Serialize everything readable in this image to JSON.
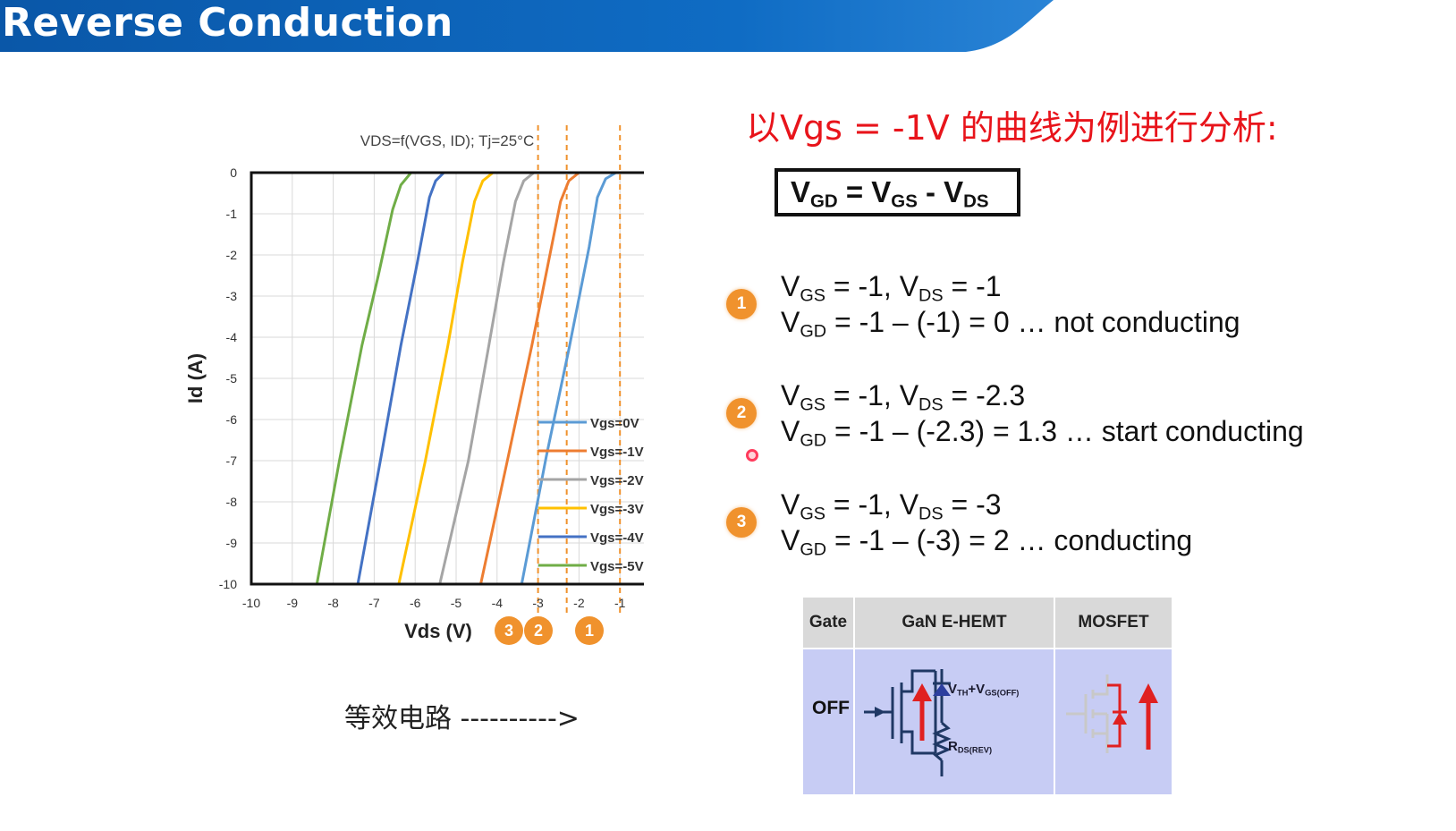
{
  "slide": {
    "title": "Reverse Conduction",
    "banner_color": "#0d5fb3"
  },
  "chart_data": {
    "type": "line",
    "title": "VDS=f(VGS, ID); Tj=25°C",
    "xlabel": "Vds (V)",
    "ylabel": "Id (A)",
    "xlim": [
      -10,
      0
    ],
    "ylim": [
      -10,
      0
    ],
    "x_ticks": [
      "-10",
      "-9",
      "-8",
      "-7",
      "-6",
      "-5",
      "-4",
      "-3",
      "-2",
      "-1",
      "0"
    ],
    "y_ticks": [
      "0",
      "-1",
      "-2",
      "-3",
      "-4",
      "-5",
      "-6",
      "-7",
      "-8",
      "-9",
      "-10"
    ],
    "grid": true,
    "legend_position": "lower-right",
    "series": [
      {
        "name": "Vgs=0V",
        "color": "#5b9bd5",
        "points": [
          [
            0,
            0
          ],
          [
            -1.1,
            0
          ],
          [
            -1.35,
            -0.15
          ],
          [
            -1.55,
            -0.6
          ],
          [
            -1.75,
            -1.8
          ],
          [
            -2.25,
            -4.3
          ],
          [
            -2.8,
            -6.9
          ],
          [
            -3.4,
            -10
          ]
        ]
      },
      {
        "name": "Vgs=-1V",
        "color": "#ed7d31",
        "points": [
          [
            0,
            0
          ],
          [
            -2.0,
            0
          ],
          [
            -2.25,
            -0.2
          ],
          [
            -2.45,
            -0.7
          ],
          [
            -2.75,
            -2.2
          ],
          [
            -3.15,
            -4.2
          ],
          [
            -3.75,
            -7.0
          ],
          [
            -4.4,
            -10
          ]
        ]
      },
      {
        "name": "Vgs=-2V",
        "color": "#a5a5a5",
        "points": [
          [
            0,
            0
          ],
          [
            -3.1,
            0
          ],
          [
            -3.35,
            -0.2
          ],
          [
            -3.55,
            -0.7
          ],
          [
            -3.85,
            -2.2
          ],
          [
            -4.2,
            -4.2
          ],
          [
            -4.7,
            -7.0
          ],
          [
            -5.4,
            -10
          ]
        ]
      },
      {
        "name": "Vgs=-3V",
        "color": "#ffc000",
        "points": [
          [
            0,
            0
          ],
          [
            -4.1,
            0
          ],
          [
            -4.35,
            -0.2
          ],
          [
            -4.55,
            -0.7
          ],
          [
            -4.85,
            -2.2
          ],
          [
            -5.2,
            -4.2
          ],
          [
            -5.75,
            -7.0
          ],
          [
            -6.4,
            -10
          ]
        ]
      },
      {
        "name": "Vgs=-4V",
        "color": "#4472c4",
        "points": [
          [
            0,
            0
          ],
          [
            -5.3,
            0
          ],
          [
            -5.5,
            -0.2
          ],
          [
            -5.65,
            -0.6
          ],
          [
            -5.95,
            -2.2
          ],
          [
            -6.35,
            -4.2
          ],
          [
            -6.85,
            -7.0
          ],
          [
            -7.4,
            -10
          ]
        ]
      },
      {
        "name": "Vgs=-5V",
        "color": "#70ad47",
        "points": [
          [
            0,
            0
          ],
          [
            -6.1,
            0
          ],
          [
            -6.35,
            -0.3
          ],
          [
            -6.55,
            -0.9
          ],
          [
            -6.9,
            -2.5
          ],
          [
            -7.3,
            -4.2
          ],
          [
            -7.85,
            -7.0
          ],
          [
            -8.4,
            -10
          ]
        ]
      }
    ],
    "markers": [
      {
        "label": "3",
        "x": -3.0
      },
      {
        "label": "2",
        "x": -2.3
      },
      {
        "label": "1",
        "x": -1.0
      }
    ],
    "marker_color": "#f0922d"
  },
  "analysis": {
    "heading": "以Vgs = -1V 的曲线为例进行分析:",
    "heading_color": "#e8141b",
    "formula": {
      "v": "V",
      "gd": "GD",
      "eq": " = V",
      "gs": "GS",
      "minus": " - V",
      "ds": "DS"
    },
    "cases": [
      {
        "badge": "1",
        "line1": {
          "v": "V",
          "gs": "GS",
          "mid": " = -1, V",
          "ds": "DS",
          "end": " = -1"
        },
        "line2": {
          "v": "V",
          "gd": "GD",
          "end": " = -1 – (-1) = 0 … not conducting"
        }
      },
      {
        "badge": "2",
        "line1": {
          "v": "V",
          "gs": "GS",
          "mid": " = -1, V",
          "ds": "DS",
          "end": " = -2.3"
        },
        "line2": {
          "v": "V",
          "gd": "GD",
          "end": " = -1 – (-2.3) = 1.3 … start conducting"
        }
      },
      {
        "badge": "3",
        "line1": {
          "v": "V",
          "gs": "GS",
          "mid": " = -1, V",
          "ds": "DS",
          "end": " = -3"
        },
        "line2": {
          "v": "V",
          "gd": "GD",
          "end": " = -1 – (-3) = 2 … conducting"
        }
      }
    ]
  },
  "circuit_label": "等效电路 ---------->",
  "circuit_table": {
    "headers": [
      "Gate",
      "GaN E-HEMT",
      "MOSFET"
    ],
    "row_label": "OFF",
    "vth_label": {
      "v": "V",
      "th": "TH",
      "plus": "+V",
      "gsoff": "GS(OFF)"
    },
    "rds_label": {
      "r": "R",
      "sub": "DS(REV)"
    },
    "header_bg": "#d9d9d9",
    "body_bg": "#c7ccf4"
  }
}
